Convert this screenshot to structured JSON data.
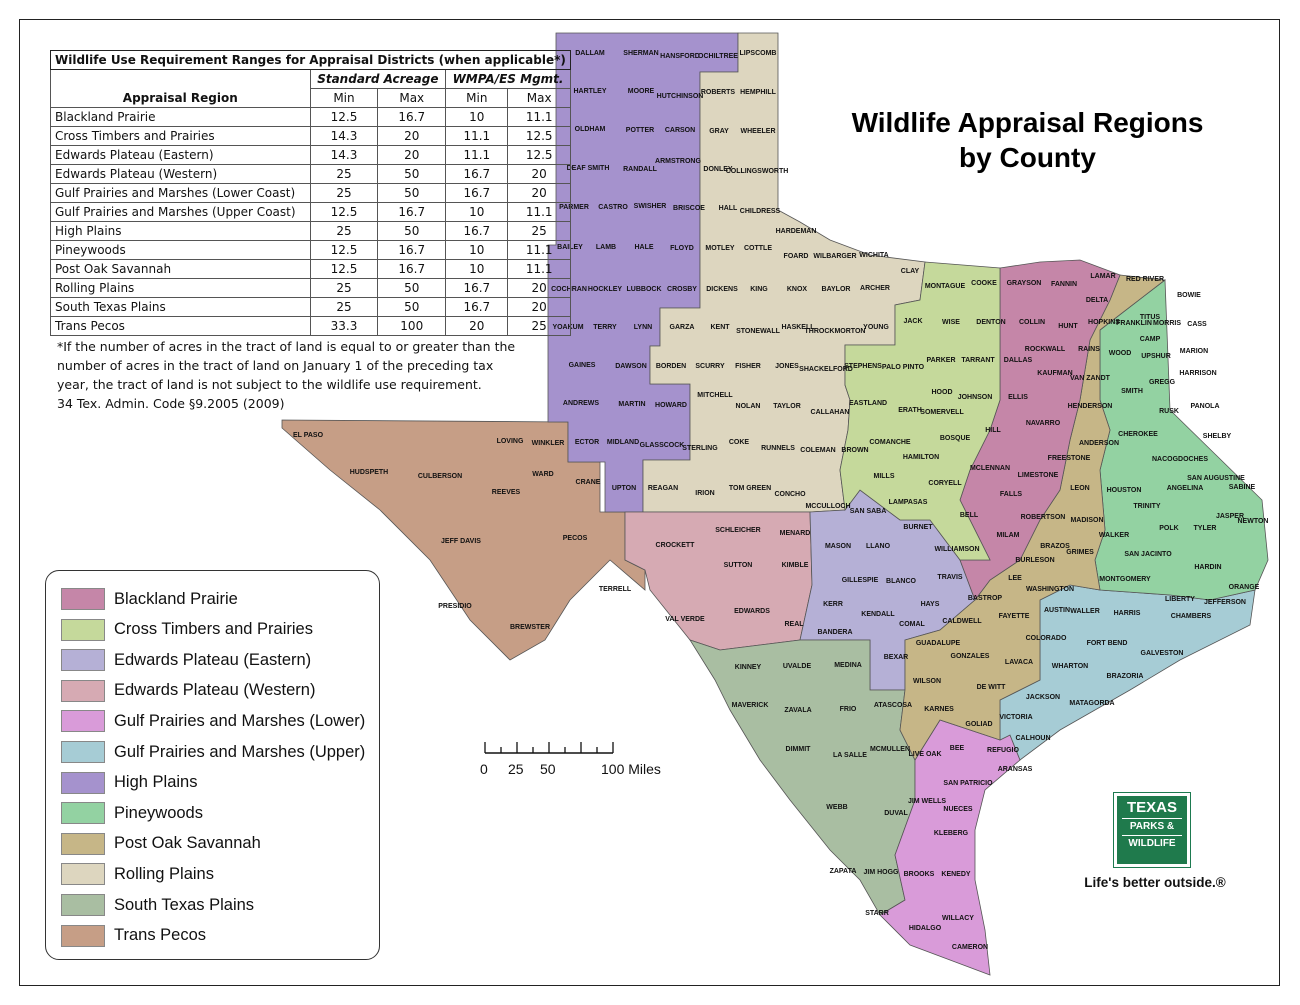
{
  "title": {
    "line1": "Wildlife Appraisal Regions",
    "line2": "by County"
  },
  "table": {
    "title": "Wildlife Use Requirement Ranges for Appraisal Districts (when applicable*)",
    "region_header": "Appraisal Region",
    "group_headers": [
      "Standard Acreage",
      "WMPA/ES Mgmt."
    ],
    "sub_headers": [
      "Min",
      "Max",
      "Min",
      "Max"
    ],
    "rows": [
      {
        "region": "Blackland Prairie",
        "values": [
          "12.5",
          "16.7",
          "10",
          "11.1"
        ]
      },
      {
        "region": "Cross Timbers and Prairies",
        "values": [
          "14.3",
          "20",
          "11.1",
          "12.5"
        ]
      },
      {
        "region": "Edwards Plateau (Eastern)",
        "values": [
          "14.3",
          "20",
          "11.1",
          "12.5"
        ]
      },
      {
        "region": "Edwards Plateau (Western)",
        "values": [
          "25",
          "50",
          "16.7",
          "20"
        ]
      },
      {
        "region": "Gulf Prairies and Marshes (Lower Coast)",
        "values": [
          "25",
          "50",
          "16.7",
          "20"
        ]
      },
      {
        "region": "Gulf Prairies and Marshes (Upper Coast)",
        "values": [
          "12.5",
          "16.7",
          "10",
          "11.1"
        ]
      },
      {
        "region": "High Plains",
        "values": [
          "25",
          "50",
          "16.7",
          "25"
        ]
      },
      {
        "region": "Pineywoods",
        "values": [
          "12.5",
          "16.7",
          "10",
          "11.1"
        ]
      },
      {
        "region": "Post Oak Savannah",
        "values": [
          "12.5",
          "16.7",
          "10",
          "11.1"
        ]
      },
      {
        "region": "Rolling Plains",
        "values": [
          "25",
          "50",
          "16.7",
          "20"
        ]
      },
      {
        "region": "South Texas Plains",
        "values": [
          "25",
          "50",
          "16.7",
          "20"
        ]
      },
      {
        "region": "Trans Pecos",
        "values": [
          "33.3",
          "100",
          "20",
          "25"
        ]
      }
    ]
  },
  "footnote": {
    "text": "*If the number of acres in the tract of land is equal to or greater than the number of acres in the tract of land on January 1 of the preceding tax year, the tract of land is not subject to the wildlife use requirement.",
    "citation": "34  Tex. Admin. Code §9.2005 (2009)"
  },
  "legend": [
    {
      "label": "Blackland Prairie",
      "color": "#c586a8"
    },
    {
      "label": "Cross Timbers and Prairies",
      "color": "#c5d99b"
    },
    {
      "label": "Edwards Plateau (Eastern)",
      "color": "#b5b0d6"
    },
    {
      "label": "Edwards Plateau (Western)",
      "color": "#d6aab3"
    },
    {
      "label": "Gulf Prairies and Marshes (Lower)",
      "color": "#d99bd9"
    },
    {
      "label": "Gulf Prairies and Marshes (Upper)",
      "color": "#a6ccd5"
    },
    {
      "label": "High Plains",
      "color": "#a592cd"
    },
    {
      "label": "Pineywoods",
      "color": "#93d2a2"
    },
    {
      "label": "Post Oak Savannah",
      "color": "#c6b687"
    },
    {
      "label": "Rolling Plains",
      "color": "#ddd6bf"
    },
    {
      "label": "South Texas Plains",
      "color": "#a9bea2"
    },
    {
      "label": "Trans Pecos",
      "color": "#c69e86"
    }
  ],
  "scale_bar": {
    "labels": [
      "0",
      "25",
      "50",
      "100 Miles"
    ]
  },
  "logo": {
    "line1": "TEXAS",
    "line2": "PARKS &",
    "line3": "WILDLIFE",
    "tagline": "Life's better outside.®"
  },
  "map": {
    "counties": [
      "DALLAM",
      "SHERMAN",
      "HANSFORD",
      "OCHILTREE",
      "LIPSCOMB",
      "HARTLEY",
      "MOORE",
      "HUTCHINSON",
      "ROBERTS",
      "HEMPHILL",
      "OLDHAM",
      "POTTER",
      "CARSON",
      "GRAY",
      "WHEELER",
      "DEAF SMITH",
      "RANDALL",
      "ARMSTRONG",
      "DONLEY",
      "COLLINGSWORTH",
      "PARMER",
      "CASTRO",
      "SWISHER",
      "BRISCOE",
      "HALL",
      "CHILDRESS",
      "HARDEMAN",
      "BAILEY",
      "LAMB",
      "HALE",
      "FLOYD",
      "MOTLEY",
      "COTTLE",
      "FOARD",
      "WILBARGER",
      "WICHITA",
      "CLAY",
      "COCHRAN",
      "HOCKLEY",
      "LUBBOCK",
      "CROSBY",
      "DICKENS",
      "KING",
      "KNOX",
      "BAYLOR",
      "ARCHER",
      "MONTAGUE",
      "COOKE",
      "GRAYSON",
      "FANNIN",
      "LAMAR",
      "RED RIVER",
      "BOWIE",
      "DELTA",
      "YOAKUM",
      "TERRY",
      "LYNN",
      "GARZA",
      "KENT",
      "STONEWALL",
      "HASKELL",
      "THROCKMORTON",
      "YOUNG",
      "JACK",
      "WISE",
      "DENTON",
      "COLLIN",
      "HUNT",
      "HOPKINS",
      "FRANKLIN",
      "TITUS",
      "MORRIS",
      "CASS",
      "CAMP",
      "GAINES",
      "DAWSON",
      "BORDEN",
      "SCURRY",
      "FISHER",
      "JONES",
      "SHACKELFORD",
      "STEPHENS",
      "PALO PINTO",
      "PARKER",
      "TARRANT",
      "DALLAS",
      "ROCKWALL",
      "RAINS",
      "WOOD",
      "UPSHUR",
      "MARION",
      "KAUFMAN",
      "VAN ZANDT",
      "SMITH",
      "GREGG",
      "HARRISON",
      "ANDREWS",
      "MARTIN",
      "HOWARD",
      "MITCHELL",
      "NOLAN",
      "TAYLOR",
      "CALLAHAN",
      "EASTLAND",
      "ERATH",
      "HOOD",
      "SOMERVELL",
      "JOHNSON",
      "ELLIS",
      "HENDERSON",
      "RUSK",
      "PANOLA",
      "EL PASO",
      "LOVING",
      "WINKLER",
      "ECTOR",
      "MIDLAND",
      "GLASSCOCK",
      "STERLING",
      "COKE",
      "RUNNELS",
      "COLEMAN",
      "BROWN",
      "COMANCHE",
      "BOSQUE",
      "HILL",
      "NAVARRO",
      "HAMILTON",
      "FREESTONE",
      "ANDERSON",
      "CHEROKEE",
      "NACOGDOCHES",
      "SHELBY",
      "SAN AUGUSTINE",
      "SABINE",
      "HUDSPETH",
      "CULBERSON",
      "WARD",
      "REEVES",
      "CRANE",
      "UPTON",
      "REAGAN",
      "IRION",
      "TOM GREEN",
      "CONCHO",
      "MCCULLOCH",
      "MILLS",
      "CORYELL",
      "MCLENNAN",
      "LIMESTONE",
      "LEON",
      "HOUSTON",
      "ANGELINA",
      "TRINITY",
      "FALLS",
      "SAN SABA",
      "LAMPASAS",
      "BELL",
      "ROBERTSON",
      "MADISON",
      "POLK",
      "TYLER",
      "JASPER",
      "NEWTON",
      "WALKER",
      "JEFF DAVIS",
      "PECOS",
      "CROCKETT",
      "SCHLEICHER",
      "MENARD",
      "MASON",
      "LLANO",
      "BURNET",
      "WILLIAMSON",
      "MILAM",
      "BRAZOS",
      "BURLESON",
      "GRIMES",
      "SAN JACINTO",
      "HARDIN",
      "SUTTON",
      "KIMBLE",
      "GILLESPIE",
      "BLANCO",
      "TRAVIS",
      "LEE",
      "MONTGOMERY",
      "LIBERTY",
      "ORANGE",
      "TERRELL",
      "WASHINGTON",
      "JEFFERSON",
      "PRESIDIO",
      "EDWARDS",
      "KERR",
      "KENDALL",
      "HAYS",
      "BASTROP",
      "FAYETTE",
      "AUSTIN",
      "WALLER",
      "HARRIS",
      "CHAMBERS",
      "VAL VERDE",
      "REAL",
      "BANDERA",
      "COMAL",
      "CALDWELL",
      "GUADALUPE",
      "COLORADO",
      "FORT BEND",
      "GALVESTON",
      "BREWSTER",
      "KINNEY",
      "UVALDE",
      "MEDINA",
      "BEXAR",
      "GONZALES",
      "LAVACA",
      "WHARTON",
      "BRAZORIA",
      "WILSON",
      "DE WITT",
      "MAVERICK",
      "ZAVALA",
      "FRIO",
      "ATASCOSA",
      "KARNES",
      "JACKSON",
      "MATAGORDA",
      "VICTORIA",
      "GOLIAD",
      "CALHOUN",
      "DIMMIT",
      "LA SALLE",
      "MCMULLEN",
      "LIVE OAK",
      "BEE",
      "REFUGIO",
      "ARANSAS",
      "SAN PATRICIO",
      "JIM WELLS",
      "NUECES",
      "WEBB",
      "DUVAL",
      "KLEBERG",
      "ZAPATA",
      "JIM HOGG",
      "BROOKS",
      "KENEDY",
      "STARR",
      "WILLACY",
      "HIDALGO",
      "CAMERON"
    ]
  }
}
